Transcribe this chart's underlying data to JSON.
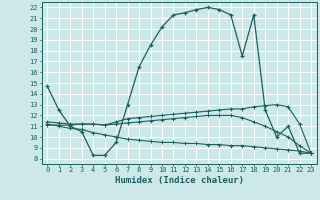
{
  "xlabel": "Humidex (Indice chaleur)",
  "bg_color": "#cde8e8",
  "grid_color": "#ffffff",
  "line_color": "#1a6060",
  "xlim": [
    -0.5,
    23.5
  ],
  "ylim": [
    7.5,
    22.5
  ],
  "yticks": [
    8,
    9,
    10,
    11,
    12,
    13,
    14,
    15,
    16,
    17,
    18,
    19,
    20,
    21,
    22
  ],
  "xticks": [
    0,
    1,
    2,
    3,
    4,
    5,
    6,
    7,
    8,
    9,
    10,
    11,
    12,
    13,
    14,
    15,
    16,
    17,
    18,
    19,
    20,
    21,
    22,
    23
  ],
  "humidex": [
    14.7,
    12.5,
    11.0,
    10.5,
    8.3,
    8.3,
    9.5,
    13.0,
    16.5,
    18.5,
    20.2,
    21.3,
    21.5,
    21.8,
    22.0,
    21.8,
    21.3,
    17.5,
    21.3,
    12.5,
    10.0,
    11.0,
    8.5,
    8.5
  ],
  "line2": [
    11.1,
    11.1,
    11.1,
    11.2,
    11.2,
    11.1,
    11.4,
    11.7,
    11.8,
    11.9,
    12.0,
    12.1,
    12.2,
    12.3,
    12.4,
    12.5,
    12.6,
    12.6,
    12.8,
    12.9,
    13.0,
    12.8,
    11.2,
    8.5
  ],
  "line3": [
    11.4,
    11.3,
    11.2,
    11.2,
    11.2,
    11.1,
    11.2,
    11.3,
    11.4,
    11.5,
    11.6,
    11.7,
    11.8,
    11.9,
    12.0,
    12.0,
    12.0,
    11.8,
    11.4,
    11.0,
    10.5,
    10.0,
    9.2,
    8.5
  ],
  "line4": [
    11.2,
    11.0,
    10.8,
    10.7,
    10.4,
    10.2,
    10.0,
    9.8,
    9.7,
    9.6,
    9.5,
    9.5,
    9.4,
    9.4,
    9.3,
    9.3,
    9.2,
    9.2,
    9.1,
    9.0,
    8.9,
    8.8,
    8.7,
    8.5
  ]
}
